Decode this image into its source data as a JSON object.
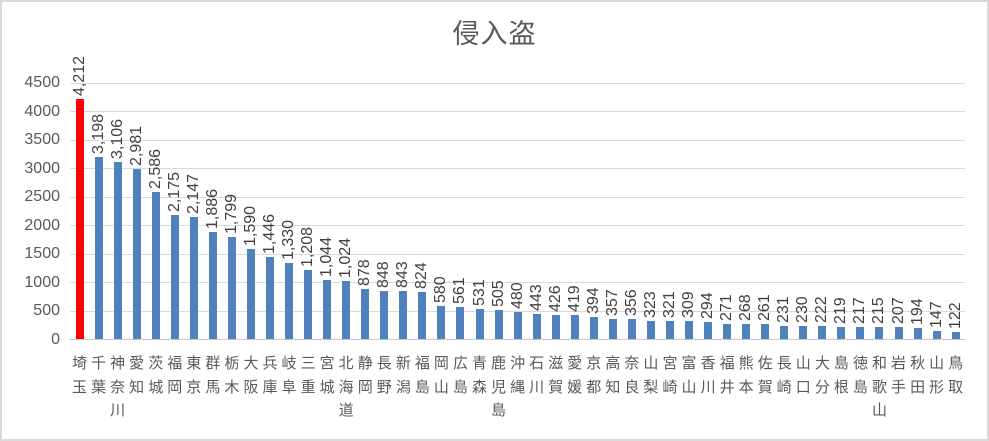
{
  "chart_data": {
    "type": "bar",
    "title": "侵入盗",
    "categories": [
      "埼玉",
      "千葉",
      "神奈川",
      "愛知",
      "茨城",
      "福岡",
      "東京",
      "群馬",
      "栃木",
      "大阪",
      "兵庫",
      "岐阜",
      "三重",
      "宮城",
      "北海道",
      "静岡",
      "長野",
      "新潟",
      "福島",
      "岡山",
      "広島",
      "青森",
      "鹿児島",
      "沖縄",
      "石川",
      "滋賀",
      "愛媛",
      "京都",
      "高知",
      "奈良",
      "山梨",
      "宮崎",
      "富山",
      "香川",
      "福井",
      "熊本",
      "佐賀",
      "長崎",
      "山口",
      "大分",
      "島根",
      "徳島",
      "和歌山",
      "岩手",
      "秋田",
      "山形",
      "鳥取"
    ],
    "values": [
      4212,
      3198,
      3106,
      2981,
      2586,
      2175,
      2147,
      1886,
      1799,
      1590,
      1446,
      1330,
      1208,
      1044,
      1024,
      878,
      848,
      843,
      824,
      580,
      561,
      531,
      505,
      480,
      443,
      426,
      419,
      394,
      357,
      356,
      323,
      321,
      309,
      294,
      271,
      268,
      261,
      231,
      230,
      222,
      219,
      217,
      215,
      207,
      194,
      147,
      122
    ],
    "highlight_index": 0,
    "xlabel": "",
    "ylabel": "",
    "ylim": [
      0,
      4500
    ],
    "ytick_labels": [
      "0",
      "500",
      "1000",
      "1500",
      "2000",
      "2500",
      "3000",
      "3500",
      "4000",
      "4500"
    ],
    "grid": true,
    "legend_position": "none",
    "value_labels_shown": true,
    "colors": {
      "bar": "#4F81BD",
      "highlight_bar": "#FF0000",
      "axis_text": "#595959",
      "value_label_text": "#404040",
      "gridline": "#D9D9D9",
      "chart_border": "#D9D9D9"
    }
  }
}
